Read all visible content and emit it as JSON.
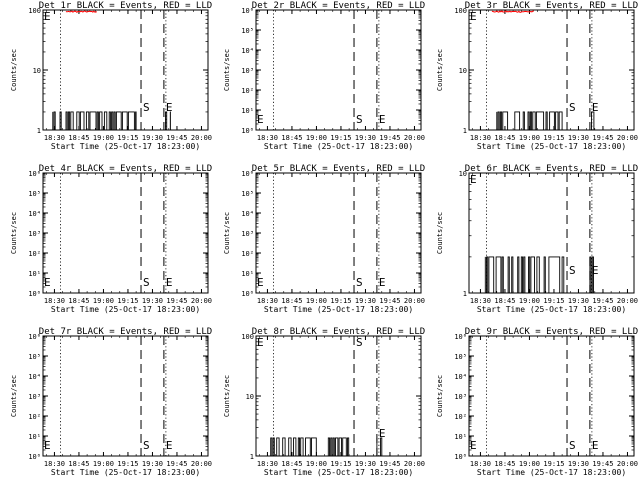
{
  "chart_data": [
    {
      "type": "line",
      "title": "Det 1r BLACK = Events, RED = LLD",
      "xlabel": "Start Time (25-Oct-17 18:23:00)",
      "ylabel": "Counts/sec",
      "y_scale": "log",
      "ylim": [
        1,
        100
      ],
      "y_ticks": [
        "1",
        "10",
        "100"
      ],
      "x_ticks": [
        "18:30",
        "18:45",
        "19:00",
        "19:15",
        "19:30",
        "19:45",
        "20:00"
      ],
      "markers": [
        {
          "label": "E",
          "time": "18:24"
        },
        {
          "label": "S",
          "time": "19:23"
        },
        {
          "label": "E",
          "time": "19:37"
        }
      ],
      "series": [
        {
          "color": "#000000",
          "segments": [
            [
              "18:29",
              "19:20"
            ],
            [
              "19:38",
              "19:41"
            ]
          ],
          "values": [
            1,
            2
          ]
        },
        {
          "color": "#ff0000",
          "segments": [
            [
              "18:37",
              "18:56"
            ]
          ],
          "values": [
            95,
            100
          ]
        }
      ]
    },
    {
      "type": "line",
      "title": "Det 2r BLACK = Events, RED = LLD",
      "xlabel": "Start Time (25-Oct-17 18:23:00)",
      "ylabel": "Counts/sec",
      "y_scale": "log",
      "ylim": [
        1,
        1000000
      ],
      "y_ticks": [
        "10⁰",
        "10¹",
        "10²",
        "10³",
        "10⁴",
        "10⁵",
        "10⁶"
      ],
      "x_ticks": [
        "18:30",
        "18:45",
        "19:00",
        "19:15",
        "19:30",
        "19:45",
        "20:00"
      ],
      "markers": [
        {
          "label": "E",
          "time": "18:24"
        },
        {
          "label": "S",
          "time": "19:23"
        },
        {
          "label": "E",
          "time": "19:37"
        }
      ],
      "series": []
    },
    {
      "type": "line",
      "title": "Det 3r BLACK = Events, RED = LLD",
      "xlabel": "Start Time (25-Oct-17 18:23:00)",
      "ylabel": "Counts/sec",
      "y_scale": "log",
      "ylim": [
        1,
        100
      ],
      "y_ticks": [
        "1",
        "10",
        "100"
      ],
      "x_ticks": [
        "18:30",
        "18:45",
        "19:00",
        "19:15",
        "19:30",
        "19:45",
        "20:00"
      ],
      "markers": [
        {
          "label": "E",
          "time": "18:24"
        },
        {
          "label": "S",
          "time": "19:23"
        },
        {
          "label": "E",
          "time": "19:37"
        }
      ],
      "series": [
        {
          "color": "#000000",
          "segments": [
            [
              "18:40",
              "19:20"
            ],
            [
              "19:38",
              "19:40"
            ]
          ],
          "values": [
            1,
            2
          ]
        },
        {
          "color": "#ff0000",
          "segments": [
            [
              "18:37",
              "19:03"
            ]
          ],
          "values": [
            95,
            100
          ]
        }
      ]
    },
    {
      "type": "line",
      "title": "Det 4r BLACK = Events, RED = LLD",
      "xlabel": "Start Time (25-Oct-17 18:23:00)",
      "ylabel": "Counts/sec",
      "y_scale": "log",
      "ylim": [
        1,
        1000000
      ],
      "y_ticks": [
        "10⁰",
        "10¹",
        "10²",
        "10³",
        "10⁴",
        "10⁵",
        "10⁶"
      ],
      "x_ticks": [
        "18:30",
        "18:45",
        "19:00",
        "19:15",
        "19:30",
        "19:45",
        "20:00"
      ],
      "markers": [
        {
          "label": "E",
          "time": "18:24"
        },
        {
          "label": "S",
          "time": "19:23"
        },
        {
          "label": "E",
          "time": "19:37"
        }
      ],
      "series": []
    },
    {
      "type": "line",
      "title": "Det 5r BLACK = Events, RED = LLD",
      "xlabel": "Start Time (25-Oct-17 18:23:00)",
      "ylabel": "Counts/sec",
      "y_scale": "log",
      "ylim": [
        1,
        1000000
      ],
      "y_ticks": [
        "10⁰",
        "10¹",
        "10²",
        "10³",
        "10⁴",
        "10⁵",
        "10⁶"
      ],
      "x_ticks": [
        "18:30",
        "18:45",
        "19:00",
        "19:15",
        "19:30",
        "19:45",
        "20:00"
      ],
      "markers": [
        {
          "label": "E",
          "time": "18:24"
        },
        {
          "label": "S",
          "time": "19:23"
        },
        {
          "label": "E",
          "time": "19:37"
        }
      ],
      "series": []
    },
    {
      "type": "line",
      "title": "Det 6r BLACK = Events, RED = LLD",
      "xlabel": "Start Time (25-Oct-17 18:23:00)",
      "ylabel": "Counts/sec",
      "y_scale": "log",
      "ylim": [
        1,
        10
      ],
      "y_ticks": [
        "1",
        "10"
      ],
      "x_ticks": [
        "18:30",
        "18:45",
        "19:00",
        "19:15",
        "19:30",
        "19:45",
        "20:00"
      ],
      "markers": [
        {
          "label": "E",
          "time": "18:24"
        },
        {
          "label": "S",
          "time": "19:23"
        },
        {
          "label": "E",
          "time": "19:37"
        }
      ],
      "series": [
        {
          "color": "#000000",
          "segments": [
            [
              "18:33",
              "19:21"
            ],
            [
              "19:37",
              "19:40"
            ]
          ],
          "values": [
            1,
            2
          ]
        }
      ]
    },
    {
      "type": "line",
      "title": "Det 7r BLACK = Events, RED = LLD",
      "xlabel": "Start Time (25-Oct-17 18:23:00)",
      "ylabel": "Counts/sec",
      "y_scale": "log",
      "ylim": [
        1,
        1000000
      ],
      "y_ticks": [
        "10⁰",
        "10¹",
        "10²",
        "10³",
        "10⁴",
        "10⁵",
        "10⁶"
      ],
      "x_ticks": [
        "18:30",
        "18:45",
        "19:00",
        "19:15",
        "19:30",
        "19:45",
        "20:00"
      ],
      "markers": [
        {
          "label": "E",
          "time": "18:24"
        },
        {
          "label": "S",
          "time": "19:23"
        },
        {
          "label": "E",
          "time": "19:37"
        }
      ],
      "series": []
    },
    {
      "type": "line",
      "title": "Det 8r BLACK = Events, RED = LLD",
      "xlabel": "Start Time (25-Oct-17 18:23:00)",
      "ylabel": "Counts/sec",
      "y_scale": "log",
      "ylim": [
        1,
        100
      ],
      "y_ticks": [
        "1",
        "10",
        "100"
      ],
      "x_ticks": [
        "18:30",
        "18:45",
        "19:00",
        "19:15",
        "19:30",
        "19:45",
        "20:00"
      ],
      "markers": [
        {
          "label": "E",
          "time": "18:24"
        },
        {
          "label": "S",
          "time": "19:23"
        },
        {
          "label": "E",
          "time": "19:37"
        }
      ],
      "series": [
        {
          "color": "#000000",
          "segments": [
            [
              "18:32",
              "19:20"
            ],
            [
              "19:37",
              "19:40"
            ]
          ],
          "values": [
            1,
            2
          ]
        }
      ]
    },
    {
      "type": "line",
      "title": "Det 9r BLACK = Events, RED = LLD",
      "xlabel": "Start Time (25-Oct-17 18:23:00)",
      "ylabel": "Counts/sec",
      "y_scale": "log",
      "ylim": [
        1,
        1000000
      ],
      "y_ticks": [
        "10⁰",
        "10¹",
        "10²",
        "10³",
        "10⁴",
        "10⁵",
        "10⁶"
      ],
      "x_ticks": [
        "18:30",
        "18:45",
        "19:00",
        "19:15",
        "19:30",
        "19:45",
        "20:00"
      ],
      "markers": [
        {
          "label": "E",
          "time": "18:24"
        },
        {
          "label": "S",
          "time": "19:23"
        },
        {
          "label": "E",
          "time": "19:37"
        }
      ],
      "series": []
    }
  ]
}
